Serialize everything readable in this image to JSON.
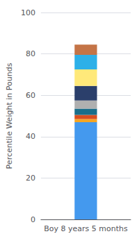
{
  "chart_data": {
    "type": "bar",
    "stacked": true,
    "categories": [
      "Boy 8 years 5 months"
    ],
    "ylabel": "Percentile Weight in Pounds",
    "ylim": [
      0,
      100
    ],
    "yticks": [
      0,
      20,
      40,
      60,
      80,
      100
    ],
    "grid": true,
    "series": [
      {
        "color": "#4499ee",
        "values": [
          47
        ]
      },
      {
        "color": "#f5a623",
        "values": [
          1.5
        ]
      },
      {
        "color": "#d94e1f",
        "values": [
          2
        ]
      },
      {
        "color": "#1a6e8a",
        "values": [
          3
        ]
      },
      {
        "color": "#b0b0b0",
        "values": [
          4
        ]
      },
      {
        "color": "#2b3f6b",
        "values": [
          7
        ]
      },
      {
        "color": "#ffe97a",
        "values": [
          8
        ]
      },
      {
        "color": "#2db0e8",
        "values": [
          7
        ]
      },
      {
        "color": "#c47447",
        "values": [
          5
        ]
      }
    ]
  }
}
